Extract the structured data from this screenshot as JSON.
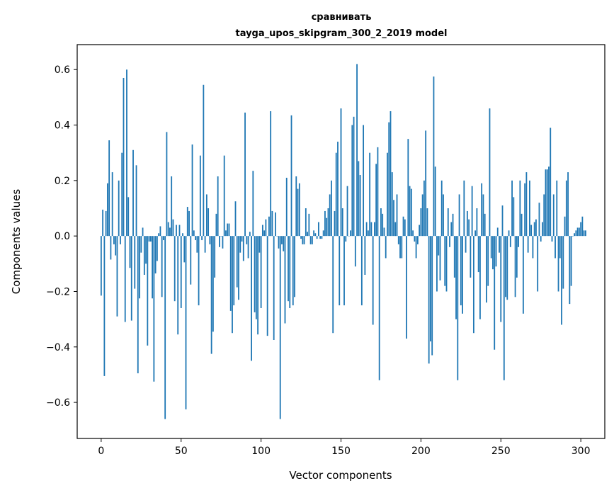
{
  "chart_data": {
    "type": "bar",
    "title": "сравнивать",
    "subtitle": "tayga_upos_skipgram_300_2_2019 model",
    "xlabel": "Vector components",
    "ylabel": "Components values",
    "xlim": [
      -15,
      315
    ],
    "ylim": [
      -0.73,
      0.69
    ],
    "x_ticks": [
      0,
      50,
      100,
      150,
      200,
      250,
      300
    ],
    "x_tick_labels": [
      "0",
      "50",
      "100",
      "150",
      "200",
      "250",
      "300"
    ],
    "y_ticks": [
      -0.6,
      -0.4,
      -0.2,
      0.0,
      0.2,
      0.4,
      0.6
    ],
    "y_tick_labels": [
      "−0.6",
      "−0.4",
      "−0.2",
      "0.0",
      "0.2",
      "0.4",
      "0.6"
    ],
    "bar_color": "#1f77b4",
    "grid": false,
    "series": [
      {
        "name": "components",
        "values": [
          -0.215,
          0.095,
          -0.505,
          0.09,
          0.19,
          0.345,
          -0.085,
          0.23,
          -0.03,
          -0.07,
          -0.29,
          0.2,
          -0.03,
          0.3,
          0.57,
          -0.31,
          0.6,
          0.14,
          -0.115,
          -0.305,
          0.31,
          -0.19,
          0.255,
          -0.495,
          -0.225,
          -0.06,
          0.03,
          -0.14,
          -0.1,
          -0.395,
          -0.02,
          -0.02,
          -0.225,
          -0.525,
          -0.135,
          -0.09,
          0.01,
          0.035,
          -0.22,
          -0.015,
          -0.66,
          0.375,
          0.05,
          0.03,
          0.215,
          0.06,
          -0.235,
          0.04,
          -0.355,
          0.04,
          -0.26,
          0.01,
          -0.095,
          -0.625,
          0.105,
          0.09,
          -0.175,
          0.33,
          0.02,
          -0.015,
          -0.06,
          -0.25,
          0.29,
          -0.015,
          0.545,
          -0.06,
          0.15,
          0.1,
          -0.03,
          -0.425,
          -0.345,
          -0.15,
          0.08,
          0.215,
          -0.04,
          0.0,
          -0.045,
          0.29,
          0.02,
          0.045,
          0.045,
          -0.27,
          -0.35,
          -0.25,
          0.125,
          -0.185,
          -0.23,
          -0.06,
          -0.02,
          -0.09,
          0.445,
          -0.03,
          -0.08,
          0.015,
          -0.45,
          0.235,
          -0.275,
          -0.3,
          -0.355,
          -0.06,
          -0.26,
          0.04,
          0.02,
          0.06,
          -0.36,
          0.07,
          0.45,
          0.09,
          -0.375,
          0.085,
          0.0,
          -0.045,
          -0.66,
          -0.03,
          -0.055,
          -0.315,
          0.21,
          -0.235,
          -0.26,
          0.435,
          -0.25,
          -0.22,
          0.215,
          0.17,
          0.19,
          -0.01,
          -0.03,
          -0.03,
          0.1,
          0.015,
          0.08,
          -0.03,
          -0.03,
          0.02,
          0.01,
          -0.01,
          0.05,
          -0.01,
          -0.01,
          0.02,
          0.09,
          0.065,
          0.1,
          0.15,
          0.2,
          -0.35,
          0.09,
          0.3,
          0.34,
          -0.25,
          0.46,
          0.1,
          -0.25,
          -0.02,
          0.18,
          0.0,
          0.02,
          0.4,
          0.43,
          -0.11,
          0.62,
          0.27,
          0.22,
          -0.25,
          0.4,
          -0.14,
          0.05,
          0.02,
          0.3,
          0.05,
          -0.32,
          0.05,
          0.26,
          0.32,
          -0.52,
          0.1,
          0.08,
          0.03,
          -0.08,
          0.3,
          0.41,
          0.45,
          0.23,
          0.13,
          0.05,
          0.15,
          -0.03,
          -0.08,
          -0.08,
          0.07,
          0.06,
          -0.37,
          0.35,
          0.18,
          0.17,
          0.02,
          -0.02,
          -0.08,
          -0.03,
          0.04,
          0.1,
          0.15,
          0.2,
          0.38,
          0.1,
          -0.46,
          -0.38,
          -0.43,
          0.575,
          0.25,
          -0.2,
          -0.07,
          -0.16,
          0.2,
          0.15,
          -0.18,
          -0.2,
          0.1,
          -0.04,
          0.05,
          0.08,
          -0.15,
          -0.3,
          -0.52,
          0.15,
          -0.25,
          -0.28,
          0.2,
          -0.06,
          0.09,
          0.06,
          -0.15,
          0.18,
          -0.35,
          0.02,
          0.1,
          -0.13,
          -0.3,
          0.19,
          0.15,
          0.08,
          -0.24,
          -0.18,
          0.46,
          -0.08,
          -0.12,
          -0.41,
          -0.11,
          0.03,
          -0.06,
          -0.31,
          0.11,
          -0.52,
          -0.22,
          -0.23,
          0.02,
          -0.04,
          0.2,
          0.14,
          -0.22,
          -0.15,
          -0.04,
          0.2,
          0.08,
          -0.28,
          0.19,
          0.23,
          -0.06,
          0.2,
          0.04,
          -0.08,
          0.05,
          0.06,
          -0.2,
          0.12,
          -0.02,
          0.05,
          0.15,
          0.24,
          0.24,
          0.25,
          0.39,
          -0.02,
          0.15,
          -0.08,
          0.2,
          -0.2,
          -0.08,
          -0.32,
          -0.19,
          0.07,
          0.2,
          0.23,
          -0.245,
          -0.18,
          0.0,
          0.01,
          0.02,
          0.03,
          0.03,
          0.05,
          0.07,
          0.02,
          0.02
        ]
      }
    ]
  }
}
